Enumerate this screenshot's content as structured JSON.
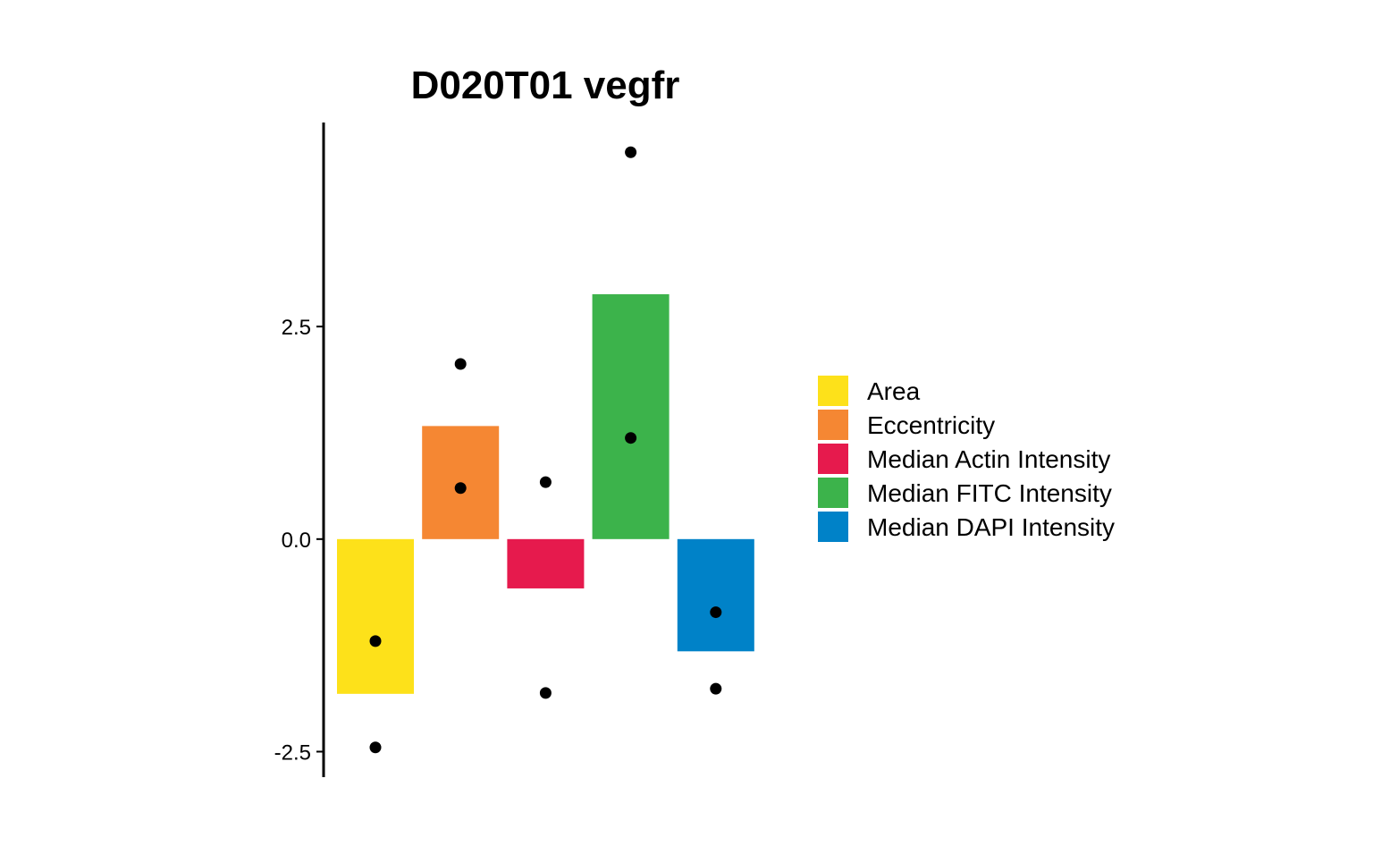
{
  "chart_data": {
    "type": "bar",
    "title": "D020T01 vegfr",
    "xlabel": "",
    "ylabel": "",
    "categories": [
      "Area",
      "Eccentricity",
      "Median Actin Intensity",
      "Median FITC Intensity",
      "Median DAPI Intensity"
    ],
    "values": [
      -1.82,
      1.33,
      -0.58,
      2.88,
      -1.32
    ],
    "points": [
      [
        -1.2,
        -2.45
      ],
      [
        0.6,
        2.06
      ],
      [
        0.67,
        -1.81
      ],
      [
        1.19,
        4.55
      ],
      [
        -0.86,
        -1.76
      ]
    ],
    "colors": [
      "#FDE11A",
      "#F58733",
      "#E61A4D",
      "#3CB34B",
      "#0082C8"
    ],
    "point_color": "#000000",
    "ylim": [
      -2.8,
      4.9
    ],
    "yticks": [
      -2.5,
      0.0,
      2.5
    ],
    "ytick_labels": [
      "-2.5",
      "0.0",
      "2.5"
    ],
    "grid": false,
    "legend": {
      "position": "right",
      "entries": [
        "Area",
        "Eccentricity",
        "Median Actin Intensity",
        "Median FITC Intensity",
        "Median DAPI Intensity"
      ]
    }
  }
}
